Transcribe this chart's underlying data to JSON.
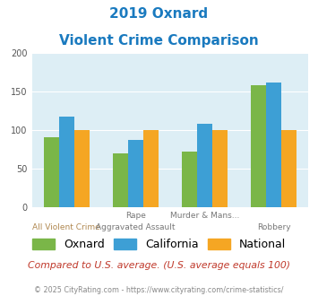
{
  "title_line1": "2019 Oxnard",
  "title_line2": "Violent Crime Comparison",
  "title_color": "#1a7abf",
  "cat_labels_top": [
    "",
    "Rape",
    "Murder & Mans...",
    ""
  ],
  "cat_labels_bottom": [
    "All Violent Crime",
    "Aggravated Assault",
    "",
    "Robbery"
  ],
  "oxnard": [
    91,
    70,
    72,
    159
  ],
  "california": [
    118,
    87,
    108,
    162
  ],
  "national": [
    100,
    100,
    100,
    100
  ],
  "color_oxnard": "#7ab648",
  "color_california": "#3d9fd5",
  "color_national": "#f5a623",
  "ylim": [
    0,
    200
  ],
  "yticks": [
    0,
    50,
    100,
    150,
    200
  ],
  "bg_color": "#ddeef5",
  "note": "Compared to U.S. average. (U.S. average equals 100)",
  "note_color": "#c0392b",
  "footer": "© 2025 CityRating.com - https://www.cityrating.com/crime-statistics/",
  "footer_color": "#888888",
  "legend_labels": [
    "Oxnard",
    "California",
    "National"
  ]
}
